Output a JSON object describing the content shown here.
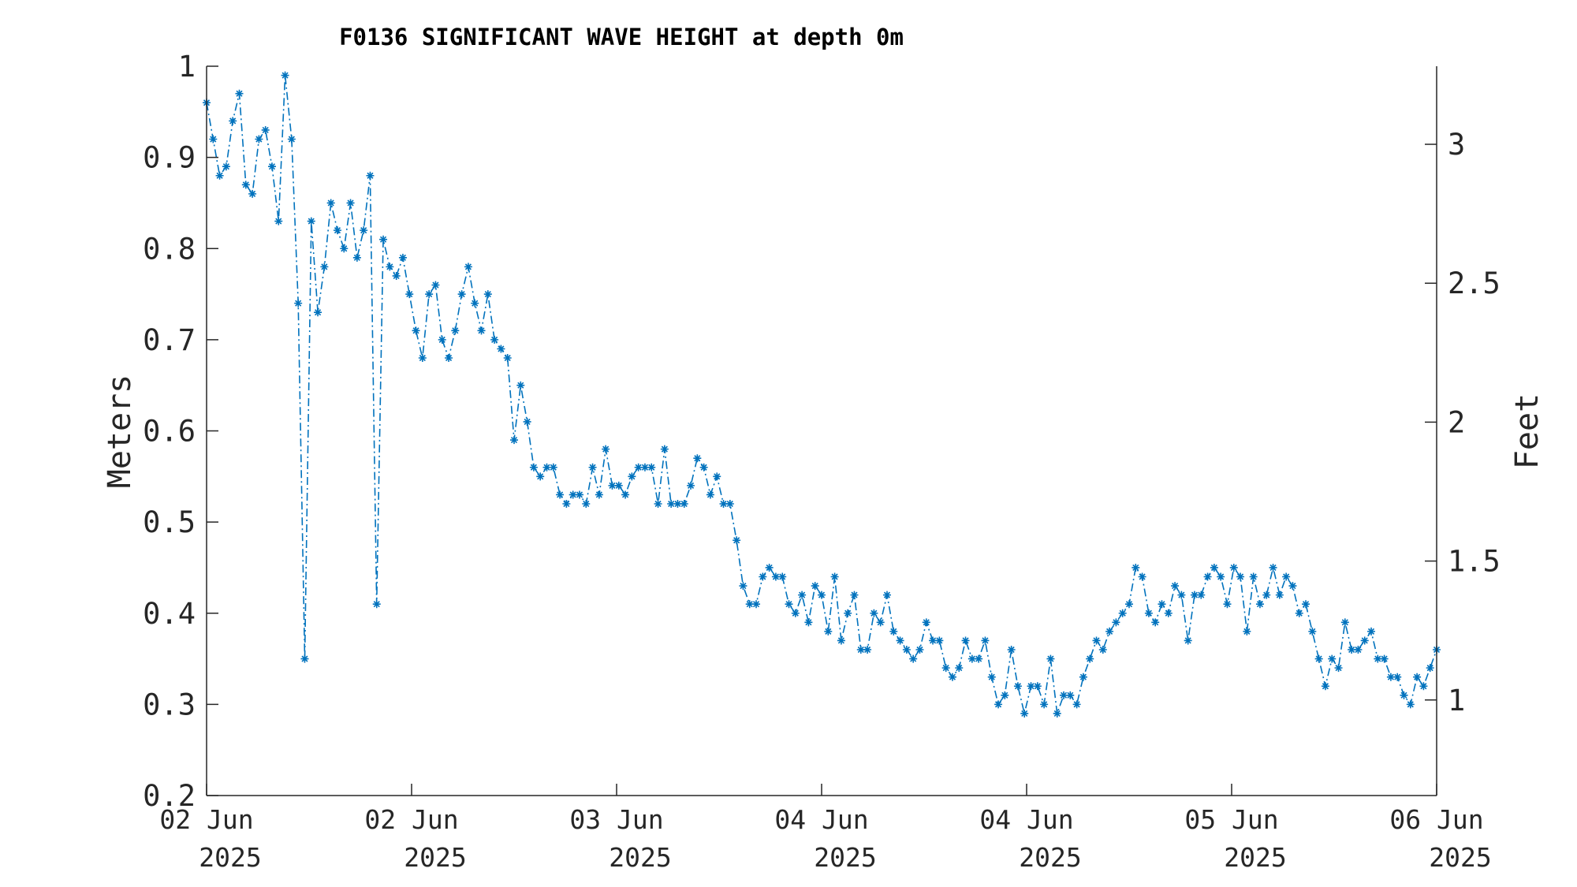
{
  "chart_data": {
    "type": "line",
    "title": "F0136 SIGNIFICANT WAVE HEIGHT at depth 0m",
    "ylabel": "Meters",
    "ylabel_right": "Feet",
    "ylim": [
      0.2,
      1.0
    ],
    "ylim_right_feet": [
      0.656,
      3.281
    ],
    "yticks": [
      "0.2",
      "0.3",
      "0.4",
      "0.5",
      "0.6",
      "0.7",
      "0.8",
      "0.9",
      "1"
    ],
    "yticks_right": [
      "1",
      "1.5",
      "2",
      "2.5",
      "3"
    ],
    "xticks": [
      {
        "line1": "02 Jun",
        "line2": "2025"
      },
      {
        "line1": "02 Jun",
        "line2": "2025"
      },
      {
        "line1": "03 Jun",
        "line2": "2025"
      },
      {
        "line1": "04 Jun",
        "line2": "2025"
      },
      {
        "line1": "04 Jun",
        "line2": "2025"
      },
      {
        "line1": "05 Jun",
        "line2": "2025"
      },
      {
        "line1": "06 Jun",
        "line2": "2025"
      }
    ],
    "grid": false,
    "marker": "asterisk",
    "line_style": "dash-dot",
    "color": "#0072BD",
    "series": [
      {
        "values": [
          0.96,
          0.92,
          0.88,
          0.89,
          0.94,
          0.97,
          0.87,
          0.86,
          0.92,
          0.93,
          0.89,
          0.83,
          0.99,
          0.92,
          0.74,
          0.35,
          0.83,
          0.73,
          0.78,
          0.85,
          0.82,
          0.8,
          0.85,
          0.79,
          0.82,
          0.88,
          0.41,
          0.81,
          0.78,
          0.77,
          0.79,
          0.75,
          0.71,
          0.68,
          0.75,
          0.76,
          0.7,
          0.68,
          0.71,
          0.75,
          0.78,
          0.74,
          0.71,
          0.75,
          0.7,
          0.69,
          0.68,
          0.59,
          0.65,
          0.61,
          0.56,
          0.55,
          0.56,
          0.56,
          0.53,
          0.52,
          0.53,
          0.53,
          0.52,
          0.56,
          0.53,
          0.58,
          0.54,
          0.54,
          0.53,
          0.55,
          0.56,
          0.56,
          0.56,
          0.52,
          0.58,
          0.52,
          0.52,
          0.52,
          0.54,
          0.57,
          0.56,
          0.53,
          0.55,
          0.52,
          0.52,
          0.48,
          0.43,
          0.41,
          0.41,
          0.44,
          0.45,
          0.44,
          0.44,
          0.41,
          0.4,
          0.42,
          0.39,
          0.43,
          0.42,
          0.38,
          0.44,
          0.37,
          0.4,
          0.42,
          0.36,
          0.36,
          0.4,
          0.39,
          0.42,
          0.38,
          0.37,
          0.36,
          0.35,
          0.36,
          0.39,
          0.37,
          0.37,
          0.34,
          0.33,
          0.34,
          0.37,
          0.35,
          0.35,
          0.37,
          0.33,
          0.3,
          0.31,
          0.36,
          0.32,
          0.29,
          0.32,
          0.32,
          0.3,
          0.35,
          0.29,
          0.31,
          0.31,
          0.3,
          0.33,
          0.35,
          0.37,
          0.36,
          0.38,
          0.39,
          0.4,
          0.41,
          0.45,
          0.44,
          0.4,
          0.39,
          0.41,
          0.4,
          0.43,
          0.42,
          0.37,
          0.42,
          0.42,
          0.44,
          0.45,
          0.44,
          0.41,
          0.45,
          0.44,
          0.38,
          0.44,
          0.41,
          0.42,
          0.45,
          0.42,
          0.44,
          0.43,
          0.4,
          0.41,
          0.38,
          0.35,
          0.32,
          0.35,
          0.34,
          0.39,
          0.36,
          0.36,
          0.37,
          0.38,
          0.35,
          0.35,
          0.33,
          0.33,
          0.31,
          0.3,
          0.33,
          0.32,
          0.34,
          0.36
        ]
      }
    ]
  }
}
